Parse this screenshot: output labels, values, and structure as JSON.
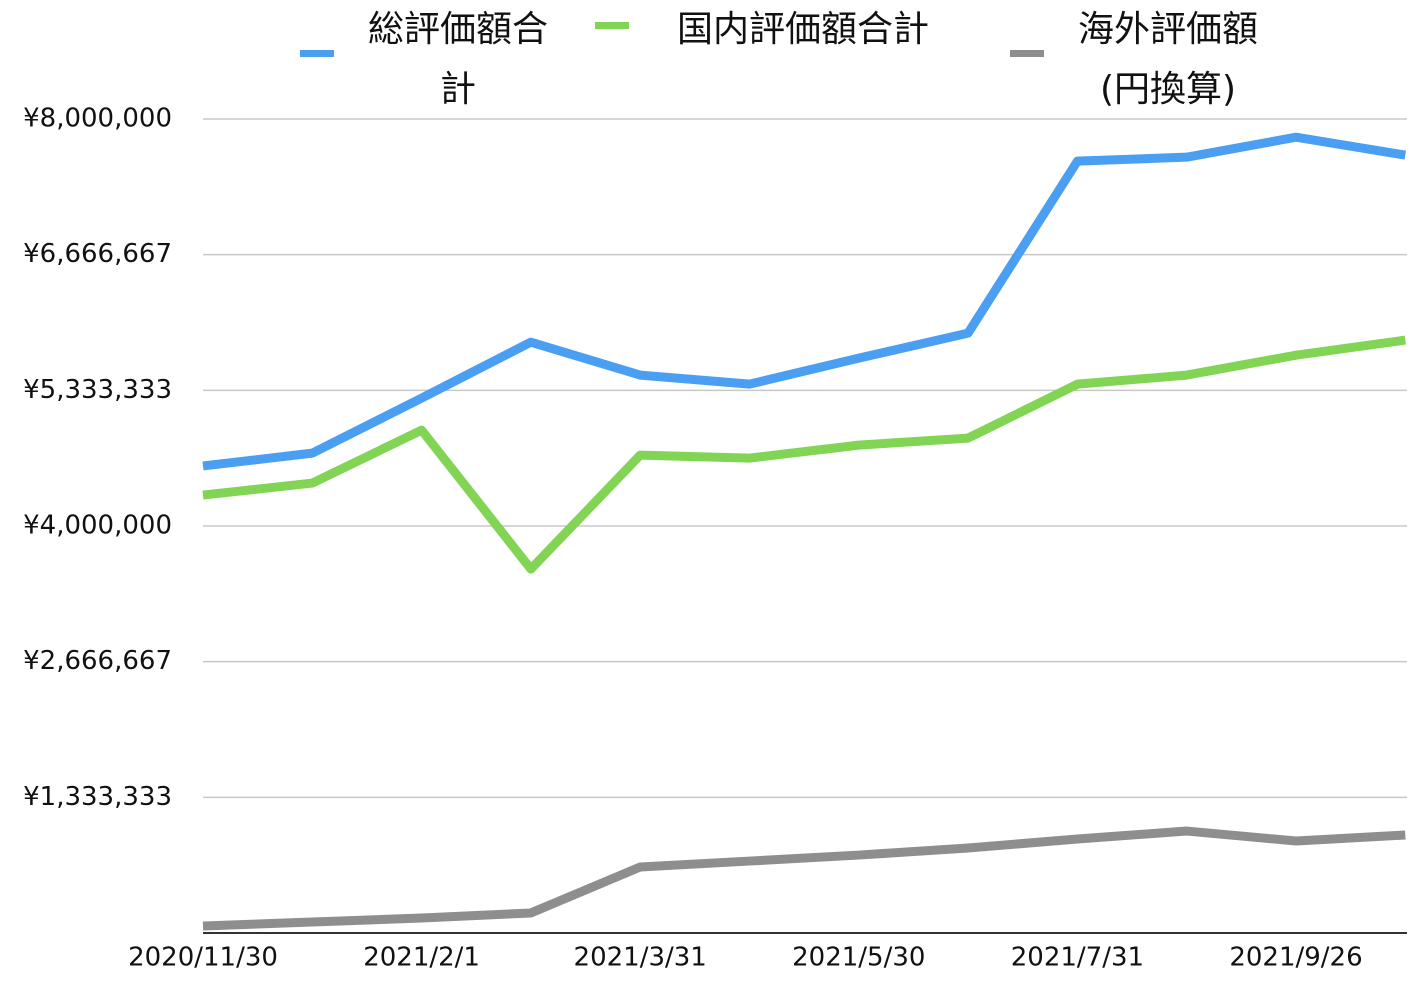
{
  "chart_data": {
    "type": "line",
    "categories": [
      "2020/11/30",
      null,
      "2021/2/1",
      null,
      "2021/3/31",
      null,
      "2021/5/30",
      null,
      "2021/7/31",
      null,
      "2021/9/26",
      null
    ],
    "series": [
      {
        "name": "総評価額合計",
        "color": "#4a9ff2",
        "values": [
          4590000,
          4716000,
          5257000,
          5807000,
          5483000,
          5394000,
          5650000,
          5896000,
          7586000,
          7625000,
          7821000,
          7645000
        ]
      },
      {
        "name": "国内評価額合計",
        "color": "#82d455",
        "values": [
          4304000,
          4422000,
          4942000,
          3577000,
          4697000,
          4667000,
          4795000,
          4864000,
          5394000,
          5483000,
          5679000,
          5827000
        ]
      },
      {
        "name": "海外評価額(円換算)",
        "color": "#8e8e8e",
        "values": [
          69000,
          108000,
          147000,
          197000,
          649000,
          707000,
          766000,
          835000,
          924000,
          1002000,
          904000,
          963000
        ]
      }
    ],
    "ylim": [
      0,
      8000000
    ],
    "yticks": [
      {
        "value": 1333333.333,
        "label": "¥1,333,333"
      },
      {
        "value": 2666666.667,
        "label": "¥2,666,667"
      },
      {
        "value": 4000000,
        "label": "¥4,000,000"
      },
      {
        "value": 5333333.333,
        "label": "¥5,333,333"
      },
      {
        "value": 6666666.667,
        "label": "¥6,666,667"
      },
      {
        "value": 8000000,
        "label": "¥8,000,000"
      }
    ],
    "grid": true,
    "legend": "top"
  }
}
